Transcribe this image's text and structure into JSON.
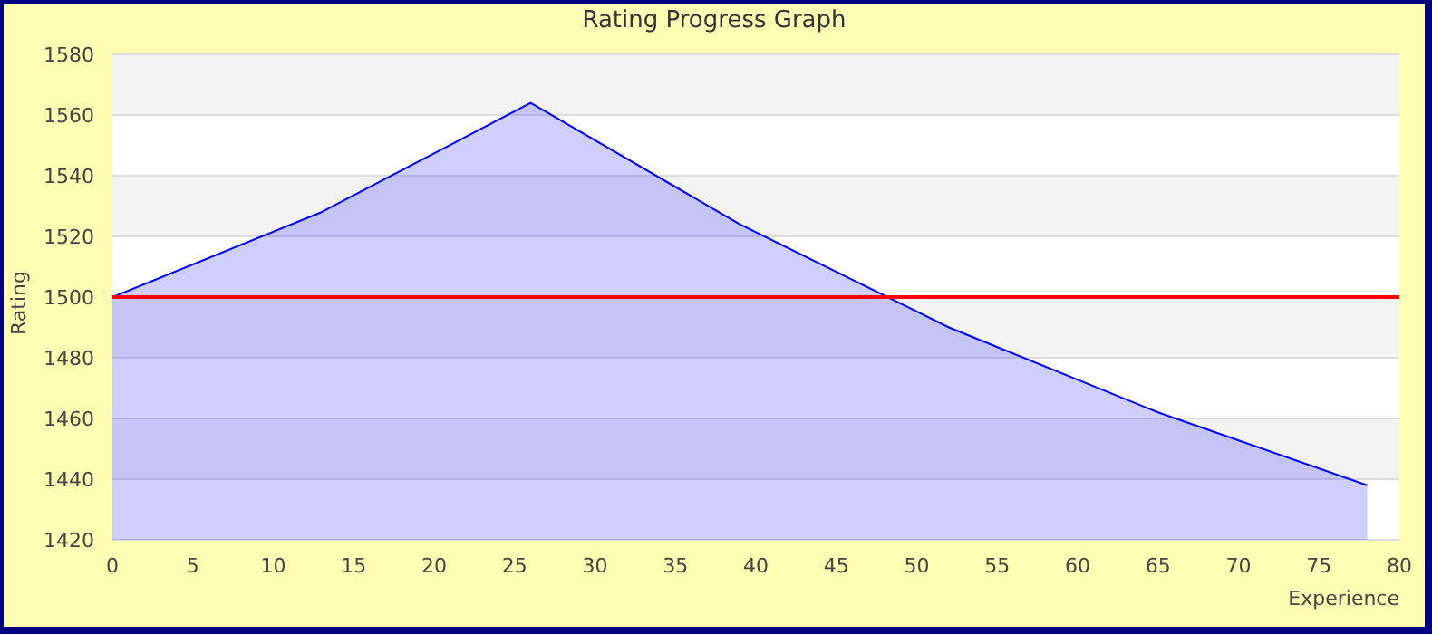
{
  "chart_data": {
    "type": "area",
    "title": "Rating Progress Graph",
    "xlabel": "Experience",
    "ylabel": "Rating",
    "x": [
      0,
      13,
      26,
      39,
      52,
      65,
      78
    ],
    "series": [
      {
        "color": "#0000ff",
        "values": [
          1500,
          1528,
          1564,
          1524,
          1490,
          1462,
          1438
        ]
      }
    ],
    "xlim": [
      0,
      80
    ],
    "xticks": [
      0,
      5,
      10,
      15,
      20,
      25,
      30,
      35,
      40,
      45,
      50,
      55,
      60,
      65,
      70,
      75,
      80
    ],
    "ylim": [
      1420,
      1580
    ],
    "yticks": [
      1420,
      1440,
      1460,
      1480,
      1500,
      1520,
      1540,
      1560,
      1580
    ],
    "ref_lines": [
      {
        "axis": "y",
        "value": 1500,
        "color": "#ff0000"
      }
    ],
    "grid": "y",
    "legend": false
  }
}
